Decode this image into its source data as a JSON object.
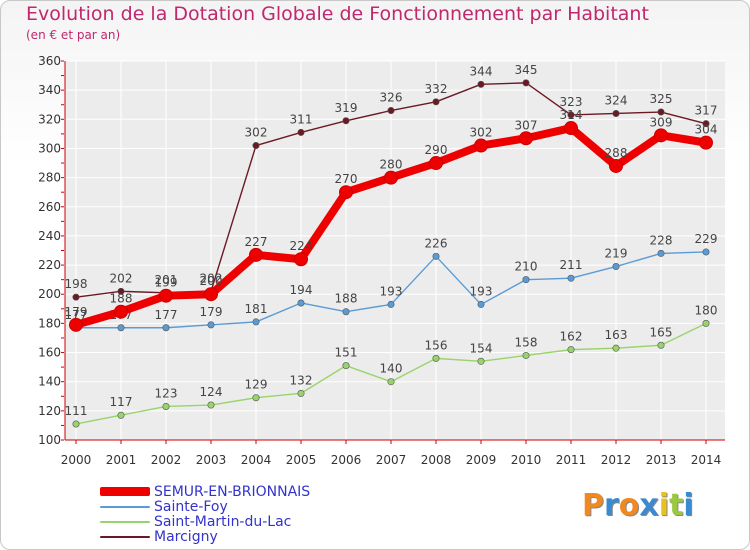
{
  "header": {
    "title": "Evolution de la Dotation Globale de Fonctionnement par Habitant",
    "subtitle": "(en € et par an)"
  },
  "logo": {
    "text": "Proxiti",
    "letters": [
      "P",
      "r",
      "o",
      "x",
      "i",
      "t",
      "i"
    ],
    "colors": [
      "#f08a20",
      "#3a8ad0",
      "#f08a20",
      "#3a8ad0",
      "#e8c020",
      "#9ac840",
      "#3a8ad0"
    ]
  },
  "chart_data": {
    "type": "line",
    "title": "Evolution de la Dotation Globale de Fonctionnement par Habitant",
    "subtitle": "(en € et par an)",
    "xlabel": "",
    "ylabel": "",
    "x": [
      "2000",
      "2001",
      "2002",
      "2003",
      "2004",
      "2005",
      "2006",
      "2007",
      "2008",
      "2009",
      "2010",
      "2011",
      "2012",
      "2013",
      "2014"
    ],
    "ylim": [
      100,
      360
    ],
    "yticks": [
      100,
      120,
      140,
      160,
      180,
      200,
      220,
      240,
      260,
      280,
      300,
      320,
      340,
      360
    ],
    "grid": true,
    "legend_position": "bottom-left",
    "series": [
      {
        "name": "Marcigny",
        "color": "#6b1a24",
        "values": [
          198,
          202,
          201,
          202,
          302,
          311,
          319,
          326,
          332,
          344,
          345,
          323,
          324,
          325,
          317
        ]
      },
      {
        "name": "Saint-Martin-du-Lac",
        "color": "#99d36b",
        "values": [
          111,
          117,
          123,
          124,
          129,
          132,
          151,
          140,
          156,
          154,
          158,
          162,
          163,
          165,
          180
        ]
      },
      {
        "name": "Sainte-Foy",
        "color": "#5b9bd5",
        "values": [
          177,
          177,
          177,
          179,
          181,
          194,
          188,
          193,
          226,
          193,
          210,
          211,
          219,
          228,
          229
        ]
      },
      {
        "name": "SEMUR-EN-BRIONNAIS",
        "color": "#ee0000",
        "values": [
          179,
          188,
          199,
          200,
          227,
          224,
          270,
          280,
          290,
          302,
          307,
          314,
          288,
          309,
          304
        ]
      }
    ],
    "legend_order": [
      "SEMUR-EN-BRIONNAIS",
      "Sainte-Foy",
      "Saint-Martin-du-Lac",
      "Marcigny"
    ]
  }
}
